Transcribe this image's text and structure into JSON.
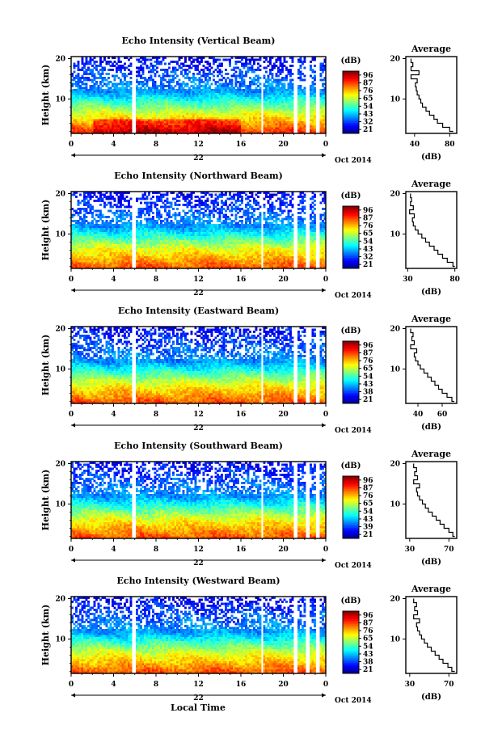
{
  "figure": {
    "x_label": "Local Time",
    "date_label": "Oct 2014",
    "day_label": "22"
  },
  "chart_data": [
    {
      "type": "heatmap",
      "title": "Echo Intensity (Vertical Beam)",
      "ylabel": "Height (km)",
      "xlabel": "Local Time",
      "x_ticks": [
        "0",
        "4",
        "8",
        "12",
        "16",
        "20",
        "0"
      ],
      "y_ticks": [
        "10",
        "20"
      ],
      "xlim": [
        0,
        24
      ],
      "ylim": [
        1.5,
        20.5
      ],
      "colorbar": {
        "label": "(dB)",
        "ticks": [
          "96",
          "87",
          "76",
          "65",
          "54",
          "43",
          "32",
          "21"
        ],
        "range": [
          21,
          96
        ]
      },
      "average_profile": {
        "title": "Average",
        "xlabel": "(dB)",
        "x_ticks": [
          "40",
          "80"
        ],
        "xlim": [
          30,
          88
        ],
        "y_ticks": [
          "10",
          "20"
        ],
        "heights_km": [
          2,
          3,
          4,
          5,
          6,
          7,
          8,
          9,
          10,
          11,
          12,
          13,
          14,
          15,
          16,
          17,
          18,
          19,
          20
        ],
        "values_db": [
          84,
          80,
          72,
          66,
          62,
          57,
          53,
          49,
          47,
          45,
          43,
          42,
          41,
          43,
          36,
          45,
          36,
          38,
          36
        ]
      }
    },
    {
      "type": "heatmap",
      "title": "Echo Intensity (Northward Beam)",
      "ylabel": "Height (km)",
      "xlabel": "Local Time",
      "x_ticks": [
        "0",
        "4",
        "8",
        "12",
        "16",
        "20",
        "0"
      ],
      "y_ticks": [
        "10",
        "20"
      ],
      "xlim": [
        0,
        24
      ],
      "ylim": [
        1.5,
        20.5
      ],
      "colorbar": {
        "label": "(dB)",
        "ticks": [
          "96",
          "87",
          "76",
          "65",
          "54",
          "43",
          "32",
          "21"
        ],
        "range": [
          21,
          96
        ]
      },
      "average_profile": {
        "title": "Average",
        "xlabel": "(dB)",
        "x_ticks": [
          "30",
          "80"
        ],
        "xlim": [
          28,
          82
        ],
        "y_ticks": [
          "10",
          "20"
        ],
        "heights_km": [
          2,
          3,
          4,
          5,
          6,
          7,
          8,
          9,
          10,
          11,
          12,
          13,
          14,
          15,
          16,
          17,
          18,
          19,
          20
        ],
        "values_db": [
          80,
          78,
          72,
          67,
          62,
          58,
          53,
          49,
          45,
          41,
          38,
          36,
          35,
          37,
          32,
          36,
          33,
          34,
          33
        ]
      }
    },
    {
      "type": "heatmap",
      "title": "Echo Intensity (Eastward Beam)",
      "ylabel": "Height (km)",
      "xlabel": "Local Time",
      "x_ticks": [
        "0",
        "4",
        "8",
        "12",
        "16",
        "20",
        "0"
      ],
      "y_ticks": [
        "10",
        "20"
      ],
      "xlim": [
        0,
        24
      ],
      "ylim": [
        1.5,
        20.5
      ],
      "colorbar": {
        "label": "(dB)",
        "ticks": [
          "96",
          "87",
          "76",
          "65",
          "54",
          "43",
          "38",
          "21"
        ],
        "range": [
          21,
          96
        ]
      },
      "average_profile": {
        "title": "Average",
        "xlabel": "(dB)",
        "x_ticks": [
          "40",
          "60"
        ],
        "xlim": [
          30,
          72
        ],
        "y_ticks": [
          "10",
          "20"
        ],
        "heights_km": [
          2,
          3,
          4,
          5,
          6,
          7,
          8,
          9,
          10,
          11,
          12,
          13,
          14,
          15,
          16,
          17,
          18,
          19,
          20
        ],
        "values_db": [
          70,
          68,
          64,
          60,
          57,
          54,
          51,
          48,
          45,
          42,
          40,
          38,
          37,
          39,
          34,
          37,
          35,
          36,
          34
        ]
      }
    },
    {
      "type": "heatmap",
      "title": "Echo Intensity (Southward Beam)",
      "ylabel": "Height (km)",
      "xlabel": "Local Time",
      "x_ticks": [
        "0",
        "4",
        "8",
        "12",
        "16",
        "20",
        "0"
      ],
      "y_ticks": [
        "10",
        "20"
      ],
      "xlim": [
        0,
        24
      ],
      "ylim": [
        1.5,
        20.5
      ],
      "colorbar": {
        "label": "(dB)",
        "ticks": [
          "96",
          "87",
          "76",
          "65",
          "54",
          "43",
          "39",
          "21"
        ],
        "range": [
          21,
          96
        ]
      },
      "average_profile": {
        "title": "Average",
        "xlabel": "(dB)",
        "x_ticks": [
          "30",
          "70"
        ],
        "xlim": [
          26,
          78
        ],
        "y_ticks": [
          "10",
          "20"
        ],
        "heights_km": [
          2,
          3,
          4,
          5,
          6,
          7,
          8,
          9,
          10,
          11,
          12,
          13,
          14,
          15,
          16,
          17,
          18,
          19,
          20
        ],
        "values_db": [
          76,
          74,
          70,
          65,
          61,
          57,
          53,
          49,
          46,
          43,
          40,
          38,
          37,
          40,
          34,
          38,
          35,
          37,
          34
        ]
      }
    },
    {
      "type": "heatmap",
      "title": "Echo Intensity (Westward Beam)",
      "ylabel": "Height (km)",
      "xlabel": "Local Time",
      "x_ticks": [
        "0",
        "4",
        "8",
        "12",
        "16",
        "20",
        "0"
      ],
      "y_ticks": [
        "10",
        "20"
      ],
      "xlim": [
        0,
        24
      ],
      "ylim": [
        1.5,
        20.5
      ],
      "colorbar": {
        "label": "(dB)",
        "ticks": [
          "96",
          "87",
          "76",
          "65",
          "54",
          "43",
          "38",
          "21"
        ],
        "range": [
          21,
          96
        ]
      },
      "average_profile": {
        "title": "Average",
        "xlabel": "(dB)",
        "x_ticks": [
          "30",
          "70"
        ],
        "xlim": [
          26,
          78
        ],
        "y_ticks": [
          "10",
          "20"
        ],
        "heights_km": [
          2,
          3,
          4,
          5,
          6,
          7,
          8,
          9,
          10,
          11,
          12,
          13,
          14,
          15,
          16,
          17,
          18,
          19,
          20
        ],
        "values_db": [
          76,
          73,
          69,
          64,
          60,
          56,
          52,
          48,
          45,
          42,
          40,
          38,
          37,
          40,
          34,
          38,
          35,
          37,
          34
        ]
      }
    }
  ]
}
